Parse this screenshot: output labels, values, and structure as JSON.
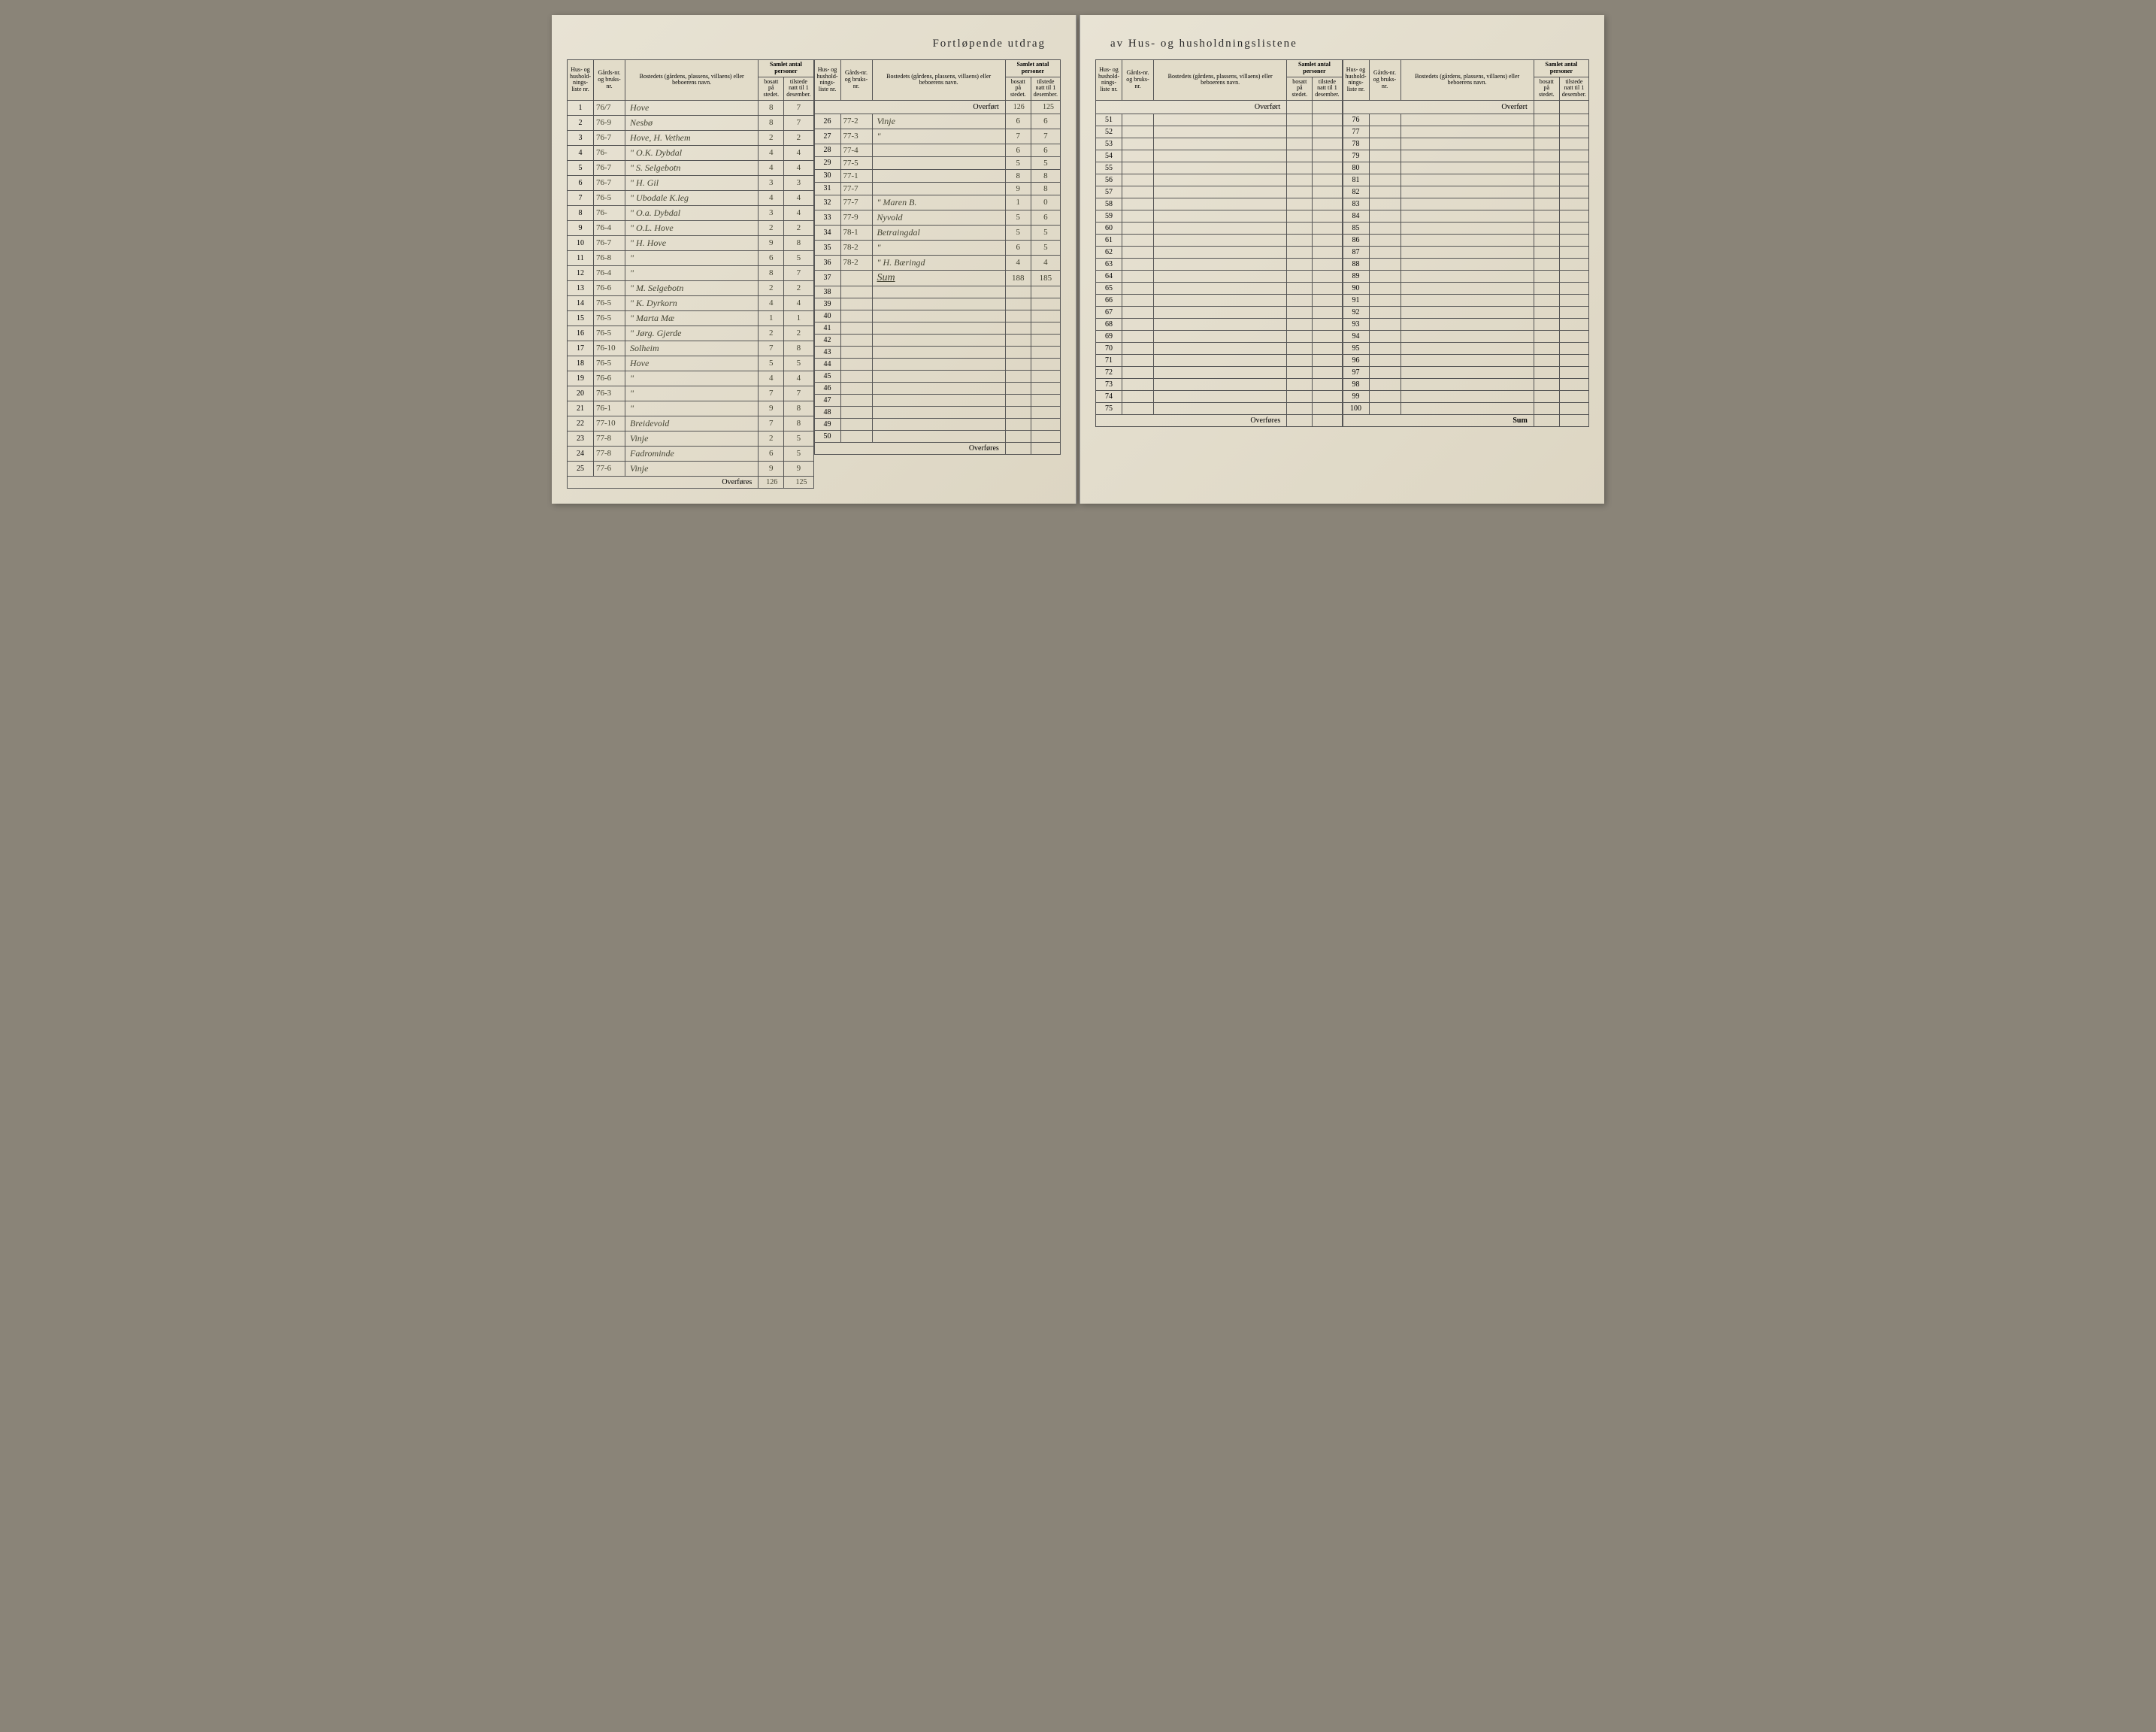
{
  "title_left": "Fortløpende utdrag",
  "title_right": "av Hus- og husholdningslistene",
  "headers": {
    "hus_liste": "Hus- og hushold-nings-liste nr.",
    "gards": "Gårds-nr. og bruks-nr.",
    "bosted": "Bostedets (gårdens, plassens, villaens) eller beboerens navn.",
    "samlet": "Samlet antal personer",
    "bosatt": "bosatt på stedet.",
    "tilstede": "tilstede natt til 1 desember."
  },
  "overfort": "Overført",
  "overfores": "Overføres",
  "sum_label": "Sum",
  "overfort_vals": {
    "bosatt": "126",
    "tilstede": "125"
  },
  "overfores_vals": {
    "bosatt": "126",
    "tilstede": "125"
  },
  "sum_vals": {
    "bosatt": "188",
    "tilstede": "185"
  },
  "sum_text": "Sum",
  "panel1": {
    "rows": [
      {
        "n": "1",
        "g": "76/7",
        "b": "Hove",
        "bo": "8",
        "ti": "7"
      },
      {
        "n": "2",
        "g": "76-9",
        "b": "Nesbø",
        "bo": "8",
        "ti": "7"
      },
      {
        "n": "3",
        "g": "76-7",
        "b": "Hove, H. Vethem",
        "bo": "2",
        "ti": "2"
      },
      {
        "n": "4",
        "g": "76-",
        "b": "\"     O.K. Dybdal",
        "bo": "4",
        "ti": "4"
      },
      {
        "n": "5",
        "g": "76-7",
        "b": "\"     S. Selgebotn",
        "bo": "4",
        "ti": "4"
      },
      {
        "n": "6",
        "g": "76-7",
        "b": "\"     H. Gil",
        "bo": "3",
        "ti": "3"
      },
      {
        "n": "7",
        "g": "76-5",
        "b": "\"    Ubodale K.leg",
        "bo": "4",
        "ti": "4"
      },
      {
        "n": "8",
        "g": "76-",
        "b": "\"    O.a. Dybdal",
        "bo": "3",
        "ti": "4"
      },
      {
        "n": "9",
        "g": "76-4",
        "b": "\"    O.L. Hove",
        "bo": "2",
        "ti": "2"
      },
      {
        "n": "10",
        "g": "76-7",
        "b": "\"    H. Hove",
        "bo": "9",
        "ti": "8"
      },
      {
        "n": "11",
        "g": "76-8",
        "b": "\"",
        "bo": "6",
        "ti": "5"
      },
      {
        "n": "12",
        "g": "76-4",
        "b": "\"",
        "bo": "8",
        "ti": "7"
      },
      {
        "n": "13",
        "g": "76-6",
        "b": "\"    M. Selgebotn",
        "bo": "2",
        "ti": "2"
      },
      {
        "n": "14",
        "g": "76-5",
        "b": "\"    K. Dyrkorn",
        "bo": "4",
        "ti": "4"
      },
      {
        "n": "15",
        "g": "76-5",
        "b": "\"    Marta Mæ",
        "bo": "1",
        "ti": "1"
      },
      {
        "n": "16",
        "g": "76-5",
        "b": "\"    Jørg. Gjerde",
        "bo": "2",
        "ti": "2"
      },
      {
        "n": "17",
        "g": "76-10",
        "b": "Solheim",
        "bo": "7",
        "ti": "8"
      },
      {
        "n": "18",
        "g": "76-5",
        "b": "Hove",
        "bo": "5",
        "ti": "5"
      },
      {
        "n": "19",
        "g": "76-6",
        "b": "\"",
        "bo": "4",
        "ti": "4"
      },
      {
        "n": "20",
        "g": "76-3",
        "b": "\"",
        "bo": "7",
        "ti": "7"
      },
      {
        "n": "21",
        "g": "76-1",
        "b": "\"",
        "bo": "9",
        "ti": "8"
      },
      {
        "n": "22",
        "g": "77-10",
        "b": "Breidevold",
        "bo": "7",
        "ti": "8"
      },
      {
        "n": "23",
        "g": "77-8",
        "b": "Vinje",
        "bo": "2",
        "ti": "5"
      },
      {
        "n": "24",
        "g": "77-8",
        "b": "Fadrominde",
        "bo": "6",
        "ti": "5"
      },
      {
        "n": "25",
        "g": "77-6",
        "b": "Vinje",
        "bo": "9",
        "ti": "9"
      }
    ]
  },
  "panel2": {
    "rows": [
      {
        "n": "26",
        "g": "77-2",
        "b": "Vinje",
        "bo": "6",
        "ti": "6"
      },
      {
        "n": "27",
        "g": "77-3",
        "b": "\"",
        "bo": "7",
        "ti": "7"
      },
      {
        "n": "28",
        "g": "77-4",
        "b": "",
        "bo": "6",
        "ti": "6"
      },
      {
        "n": "29",
        "g": "77-5",
        "b": "",
        "bo": "5",
        "ti": "5"
      },
      {
        "n": "30",
        "g": "77-1",
        "b": "",
        "bo": "8",
        "ti": "8"
      },
      {
        "n": "31",
        "g": "77-7",
        "b": "",
        "bo": "9",
        "ti": "8"
      },
      {
        "n": "32",
        "g": "77-7",
        "b": "\"    Maren B.",
        "bo": "1",
        "ti": "0"
      },
      {
        "n": "33",
        "g": "77-9",
        "b": "Nyvold",
        "bo": "5",
        "ti": "6"
      },
      {
        "n": "34",
        "g": "78-1",
        "b": "Betraingdal",
        "bo": "5",
        "ti": "5"
      },
      {
        "n": "35",
        "g": "78-2",
        "b": "\"",
        "bo": "6",
        "ti": "5"
      },
      {
        "n": "36",
        "g": "78-2",
        "b": "\"    H. Bæringd",
        "bo": "4",
        "ti": "4"
      },
      {
        "n": "37",
        "g": "",
        "b": "",
        "bo": "",
        "ti": ""
      },
      {
        "n": "38",
        "g": "",
        "b": "",
        "bo": "",
        "ti": ""
      },
      {
        "n": "39",
        "g": "",
        "b": "",
        "bo": "",
        "ti": ""
      },
      {
        "n": "40",
        "g": "",
        "b": "",
        "bo": "",
        "ti": ""
      },
      {
        "n": "41",
        "g": "",
        "b": "",
        "bo": "",
        "ti": ""
      },
      {
        "n": "42",
        "g": "",
        "b": "",
        "bo": "",
        "ti": ""
      },
      {
        "n": "43",
        "g": "",
        "b": "",
        "bo": "",
        "ti": ""
      },
      {
        "n": "44",
        "g": "",
        "b": "",
        "bo": "",
        "ti": ""
      },
      {
        "n": "45",
        "g": "",
        "b": "",
        "bo": "",
        "ti": ""
      },
      {
        "n": "46",
        "g": "",
        "b": "",
        "bo": "",
        "ti": ""
      },
      {
        "n": "47",
        "g": "",
        "b": "",
        "bo": "",
        "ti": ""
      },
      {
        "n": "48",
        "g": "",
        "b": "",
        "bo": "",
        "ti": ""
      },
      {
        "n": "49",
        "g": "",
        "b": "",
        "bo": "",
        "ti": ""
      },
      {
        "n": "50",
        "g": "",
        "b": "",
        "bo": "",
        "ti": ""
      }
    ]
  },
  "panel3_start": 51,
  "panel4_start": 76
}
